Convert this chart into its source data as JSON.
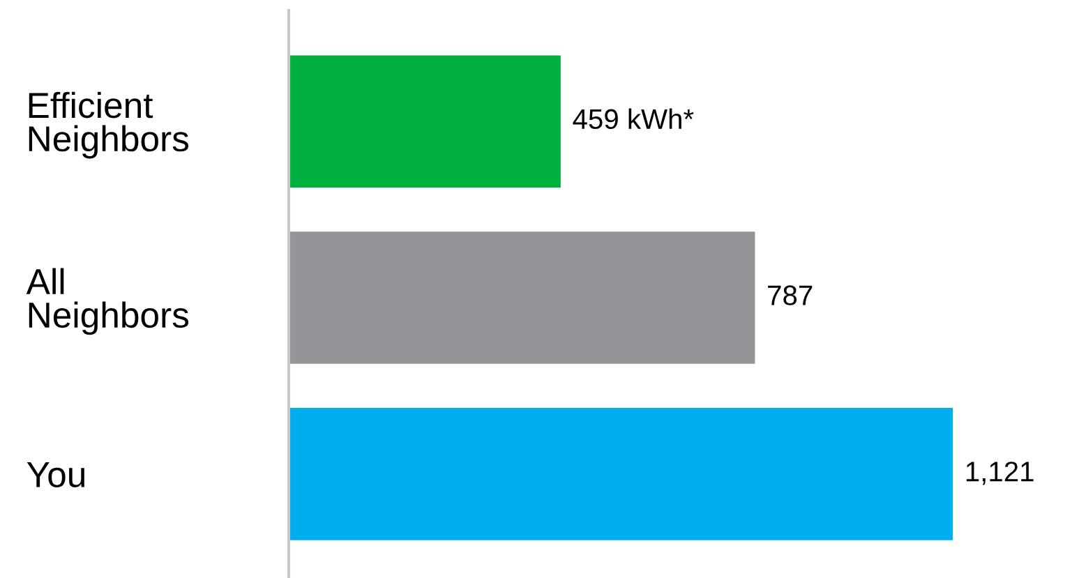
{
  "chart_data": {
    "type": "bar",
    "orientation": "horizontal",
    "categories": [
      "Efficient\nNeighbors",
      "All\nNeighbors",
      "You"
    ],
    "values": [
      459,
      787,
      1121
    ],
    "colors": [
      "#00b140",
      "#939598",
      "#00aeef"
    ],
    "value_labels": [
      "459 kWh*",
      "787",
      "1,121"
    ],
    "grid": false,
    "legend": false,
    "tick_labels": "y"
  }
}
